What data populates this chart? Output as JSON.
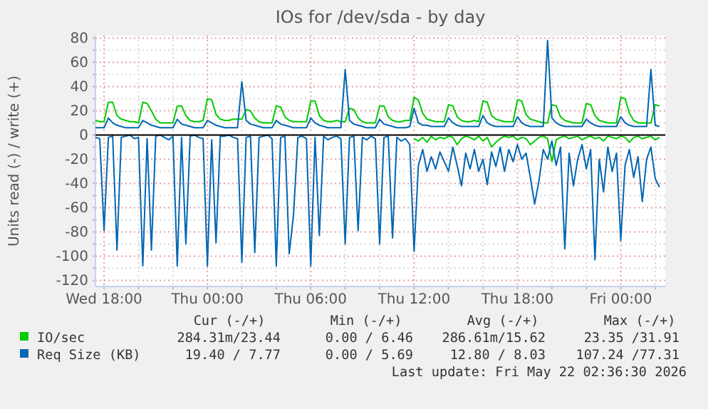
{
  "chart_data": {
    "type": "line",
    "title": "IOs for /dev/sda - by day",
    "ylabel": "Units read (-) / write (+)",
    "x": [
      "2026-05-20T17:30",
      "2026-05-20T17:45",
      "2026-05-20T18:00",
      "2026-05-20T18:15",
      "2026-05-20T18:30",
      "2026-05-20T18:45",
      "2026-05-20T19:00",
      "2026-05-20T19:15",
      "2026-05-20T19:30",
      "2026-05-20T19:45",
      "2026-05-20T20:00",
      "2026-05-20T20:15",
      "2026-05-20T20:30",
      "2026-05-20T20:45",
      "2026-05-20T21:00",
      "2026-05-20T21:15",
      "2026-05-20T21:30",
      "2026-05-20T21:45",
      "2026-05-20T22:00",
      "2026-05-20T22:15",
      "2026-05-20T22:30",
      "2026-05-20T22:45",
      "2026-05-20T23:00",
      "2026-05-20T23:15",
      "2026-05-20T23:30",
      "2026-05-20T23:45",
      "2026-05-21T00:00",
      "2026-05-21T00:15",
      "2026-05-21T00:30",
      "2026-05-21T00:45",
      "2026-05-21T01:00",
      "2026-05-21T01:15",
      "2026-05-21T01:30",
      "2026-05-21T01:45",
      "2026-05-21T02:00",
      "2026-05-21T02:15",
      "2026-05-21T02:30",
      "2026-05-21T02:45",
      "2026-05-21T03:00",
      "2026-05-21T03:15",
      "2026-05-21T03:30",
      "2026-05-21T03:45",
      "2026-05-21T04:00",
      "2026-05-21T04:15",
      "2026-05-21T04:30",
      "2026-05-21T04:45",
      "2026-05-21T05:00",
      "2026-05-21T05:15",
      "2026-05-21T05:30",
      "2026-05-21T05:45",
      "2026-05-21T06:00",
      "2026-05-21T06:15",
      "2026-05-21T06:30",
      "2026-05-21T06:45",
      "2026-05-21T07:00",
      "2026-05-21T07:15",
      "2026-05-21T07:30",
      "2026-05-21T07:45",
      "2026-05-21T08:00",
      "2026-05-21T08:15",
      "2026-05-21T08:30",
      "2026-05-21T08:45",
      "2026-05-21T09:00",
      "2026-05-21T09:15",
      "2026-05-21T09:30",
      "2026-05-21T09:45",
      "2026-05-21T10:00",
      "2026-05-21T10:15",
      "2026-05-21T10:30",
      "2026-05-21T10:45",
      "2026-05-21T11:00",
      "2026-05-21T11:15",
      "2026-05-21T11:30",
      "2026-05-21T11:45",
      "2026-05-21T12:00",
      "2026-05-21T12:15",
      "2026-05-21T12:30",
      "2026-05-21T12:45",
      "2026-05-21T13:00",
      "2026-05-21T13:15",
      "2026-05-21T13:30",
      "2026-05-21T13:45",
      "2026-05-21T14:00",
      "2026-05-21T14:15",
      "2026-05-21T14:30",
      "2026-05-21T14:45",
      "2026-05-21T15:00",
      "2026-05-21T15:15",
      "2026-05-21T15:30",
      "2026-05-21T15:45",
      "2026-05-21T16:00",
      "2026-05-21T16:15",
      "2026-05-21T16:30",
      "2026-05-21T16:45",
      "2026-05-21T17:00",
      "2026-05-21T17:15",
      "2026-05-21T17:30",
      "2026-05-21T17:45",
      "2026-05-21T18:00",
      "2026-05-21T18:15",
      "2026-05-21T18:30",
      "2026-05-21T18:45",
      "2026-05-21T19:00",
      "2026-05-21T19:15",
      "2026-05-21T19:30",
      "2026-05-21T19:45",
      "2026-05-21T20:00",
      "2026-05-21T20:15",
      "2026-05-21T20:30",
      "2026-05-21T20:45",
      "2026-05-21T21:00",
      "2026-05-21T21:15",
      "2026-05-21T21:30",
      "2026-05-21T21:45",
      "2026-05-21T22:00",
      "2026-05-21T22:15",
      "2026-05-21T22:30",
      "2026-05-21T22:45",
      "2026-05-21T23:00",
      "2026-05-21T23:15",
      "2026-05-21T23:30",
      "2026-05-21T23:45",
      "2026-05-22T00:00",
      "2026-05-22T00:15",
      "2026-05-22T00:30",
      "2026-05-22T00:45",
      "2026-05-22T01:00",
      "2026-05-22T01:15",
      "2026-05-22T01:30",
      "2026-05-22T01:45",
      "2026-05-22T02:00",
      "2026-05-22T02:15"
    ],
    "series": [
      {
        "color": "#00cc00",
        "values": [
          null,
          null,
          null,
          null,
          null,
          null,
          null,
          null,
          null,
          null,
          null,
          null,
          null,
          null,
          null,
          null,
          null,
          null,
          null,
          null,
          null,
          null,
          null,
          null,
          null,
          null,
          null,
          null,
          null,
          null,
          null,
          null,
          null,
          null,
          null,
          null,
          null,
          null,
          null,
          null,
          null,
          null,
          null,
          null,
          null,
          null,
          null,
          null,
          null,
          null,
          null,
          null,
          null,
          null,
          null,
          null,
          null,
          null,
          null,
          null,
          null,
          null,
          null,
          null,
          null,
          null,
          null,
          null,
          null,
          null,
          null,
          null,
          null,
          null,
          -3,
          -5,
          -2,
          -6,
          -1,
          -4,
          -2,
          -3,
          -1,
          -2,
          -8,
          -3,
          -1,
          -2,
          -4,
          -1,
          -5,
          -2,
          -10,
          -6,
          -3,
          -1,
          -2,
          -1,
          -4,
          -2,
          -3,
          -8,
          -5,
          -2,
          -1,
          -3,
          -22,
          -4,
          -2,
          -1,
          -3,
          -2,
          -1,
          -4,
          -2,
          -1,
          -3,
          -2,
          -5,
          -1,
          -2,
          -3,
          -1,
          -2,
          -6,
          -2,
          -1,
          -3,
          -2,
          -1,
          -4,
          -2
        ]
      },
      {
        "name": "IO/sec",
        "color": "#00cc00",
        "values": [
          12,
          11,
          11,
          27,
          27,
          16,
          13,
          12,
          11,
          11,
          10,
          27,
          26,
          20,
          13,
          10,
          10,
          10,
          10,
          24,
          24,
          16,
          12,
          11,
          11,
          12,
          30,
          29,
          17,
          13,
          12,
          12,
          13,
          13,
          13,
          21,
          20,
          14,
          11,
          10,
          10,
          10,
          24,
          23,
          15,
          12,
          11,
          11,
          11,
          11,
          28,
          28,
          16,
          12,
          11,
          11,
          12,
          11,
          11,
          22,
          21,
          14,
          11,
          10,
          10,
          10,
          24,
          24,
          15,
          12,
          11,
          11,
          12,
          12,
          31,
          29,
          18,
          13,
          12,
          11,
          11,
          11,
          25,
          24,
          15,
          12,
          11,
          11,
          12,
          11,
          28,
          27,
          16,
          13,
          12,
          11,
          11,
          11,
          29,
          28,
          17,
          13,
          12,
          11,
          10,
          10,
          25,
          24,
          15,
          12,
          11,
          10,
          10,
          10,
          26,
          25,
          16,
          12,
          11,
          10,
          10,
          10,
          31,
          30,
          18,
          12,
          10,
          10,
          10,
          10,
          25,
          24
        ]
      },
      {
        "color": "#0066b3",
        "values": [
          -2,
          -3,
          -79,
          -2,
          -1,
          -95,
          -2,
          -1,
          0,
          -3,
          -2,
          -108,
          -3,
          -95,
          -1,
          0,
          -2,
          -4,
          -1,
          -108,
          -2,
          -90,
          -1,
          0,
          -2,
          -3,
          -108,
          -4,
          -89,
          -1,
          -1,
          0,
          -2,
          -3,
          -105,
          -2,
          -1,
          -97,
          -2,
          -1,
          0,
          -3,
          -108,
          -2,
          -1,
          -98,
          -66,
          -2,
          -1,
          -3,
          -108,
          -2,
          -83,
          -1,
          -4,
          -2,
          -1,
          -3,
          -90,
          -2,
          -1,
          -79,
          -2,
          -4,
          -1,
          -3,
          -90,
          -2,
          -1,
          -85,
          -2,
          -5,
          -3,
          -8,
          -96,
          -25,
          -12,
          -30,
          -18,
          -28,
          -14,
          -22,
          -30,
          -10,
          -25,
          -42,
          -15,
          -28,
          -12,
          -30,
          -20,
          -41,
          -14,
          -26,
          -10,
          -30,
          -12,
          -22,
          -8,
          -20,
          -15,
          -35,
          -57,
          -38,
          -12,
          -20,
          -5,
          -25,
          -10,
          -94,
          -15,
          -42,
          -20,
          -8,
          -28,
          -12,
          -103,
          -20,
          -47,
          -10,
          -30,
          -15,
          -87,
          -25,
          -12,
          -35,
          -18,
          -55,
          -20,
          -10,
          -36,
          -43
        ]
      },
      {
        "name": "Req Size (KB)",
        "color": "#0066b3",
        "values": [
          6,
          6,
          6,
          14,
          10,
          8,
          7,
          6,
          6,
          6,
          6,
          12,
          10,
          8,
          7,
          6,
          6,
          6,
          6,
          13,
          9,
          8,
          7,
          6,
          6,
          6,
          12,
          10,
          8,
          7,
          6,
          6,
          6,
          6,
          44,
          12,
          9,
          8,
          7,
          6,
          6,
          6,
          12,
          9,
          8,
          7,
          6,
          6,
          6,
          6,
          14,
          10,
          8,
          7,
          6,
          6,
          6,
          6,
          54,
          12,
          9,
          8,
          7,
          6,
          6,
          6,
          13,
          9,
          8,
          7,
          6,
          6,
          6,
          7,
          22,
          10,
          8,
          8,
          7,
          7,
          7,
          7,
          14,
          10,
          8,
          7,
          7,
          7,
          7,
          7,
          16,
          10,
          8,
          7,
          7,
          7,
          7,
          7,
          15,
          10,
          8,
          7,
          7,
          7,
          7,
          78,
          14,
          10,
          8,
          7,
          7,
          7,
          7,
          7,
          13,
          10,
          8,
          7,
          7,
          7,
          7,
          7,
          15,
          10,
          8,
          7,
          7,
          7,
          7,
          54,
          8,
          7
        ]
      }
    ],
    "xlim": [
      "2026-05-20T17:30",
      "2026-05-22T02:35"
    ],
    "xticks": [
      {
        "value": "2026-05-20T18:00",
        "label": "Wed 18:00"
      },
      {
        "value": "2026-05-20T20:00",
        "label": null
      },
      {
        "value": "2026-05-20T22:00",
        "label": null
      },
      {
        "value": "2026-05-21T00:00",
        "label": "Thu 00:00"
      },
      {
        "value": "2026-05-21T02:00",
        "label": null
      },
      {
        "value": "2026-05-21T04:00",
        "label": null
      },
      {
        "value": "2026-05-21T06:00",
        "label": "Thu 06:00"
      },
      {
        "value": "2026-05-21T08:00",
        "label": null
      },
      {
        "value": "2026-05-21T10:00",
        "label": null
      },
      {
        "value": "2026-05-21T12:00",
        "label": "Thu 12:00"
      },
      {
        "value": "2026-05-21T14:00",
        "label": null
      },
      {
        "value": "2026-05-21T16:00",
        "label": null
      },
      {
        "value": "2026-05-21T18:00",
        "label": "Thu 18:00"
      },
      {
        "value": "2026-05-21T20:00",
        "label": null
      },
      {
        "value": "2026-05-21T22:00",
        "label": null
      },
      {
        "value": "2026-05-22T00:00",
        "label": "Fri 00:00"
      },
      {
        "value": "2026-05-22T02:00",
        "label": null
      }
    ],
    "ylim": [
      -125,
      82
    ],
    "yticks": [
      -120,
      {
        "value": -110,
        "label": null
      },
      -100,
      {
        "value": -90,
        "label": null
      },
      -80,
      {
        "value": -70,
        "label": null
      },
      -60,
      {
        "value": -50,
        "label": null
      },
      -40,
      {
        "value": -30,
        "label": null
      },
      -20,
      {
        "value": -10,
        "label": null
      },
      0,
      {
        "value": 10,
        "label": null
      },
      20,
      {
        "value": 30,
        "label": null
      },
      40,
      {
        "value": 50,
        "label": null
      },
      60,
      {
        "value": 70,
        "label": null
      },
      80
    ],
    "grid": true,
    "ref_lines": [
      {
        "axis": "y",
        "value": 0,
        "color": "#000000"
      }
    ],
    "legend": "bottom",
    "annotations": [
      "Cur (-/+)",
      "Min (-/+)",
      "Avg (-/+)",
      "Max (-/+)",
      "284.31m/23.44",
      "0.00 / 6.46",
      "286.61m/15.62",
      "23.35 /31.91",
      "19.40 / 7.77",
      "0.00 / 5.69",
      "12.80 / 8.03",
      "107.24 /77.31",
      "Last update: Fri May 22 02:36:30 2026"
    ]
  }
}
